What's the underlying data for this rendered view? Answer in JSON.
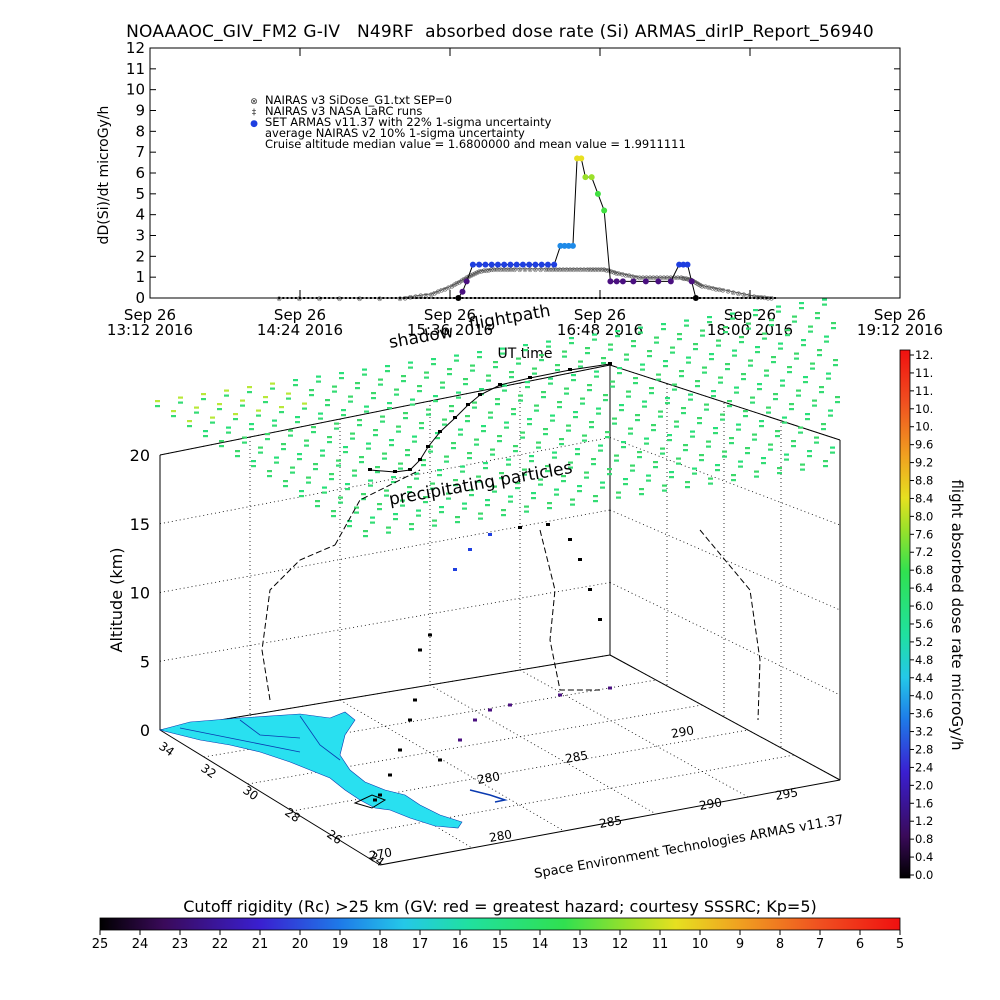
{
  "title": "NOAAAOC_GIV_FM2 G-IV   N49RF  absorbed dose rate (Si) ARMAS_dirIP_Report_56940",
  "colors": {
    "armas_blue": "#1f3fe0",
    "nairas_dots": "#555555",
    "ionosphere_green": "#3cd86a",
    "land_cyan": "#29e0f0",
    "flightpath": "#000000"
  },
  "chart_data": [
    {
      "type": "line",
      "title": "",
      "xlabel": "UT time",
      "ylabel": "dD(Si)/dt microGy/h",
      "ylim": [
        0,
        12
      ],
      "y_ticks": [
        0,
        1,
        2,
        3,
        4,
        5,
        6,
        7,
        8,
        9,
        10,
        11,
        12
      ],
      "xlim_minutes": [
        0,
        360
      ],
      "x_ticks": [
        {
          "line1": "Sep 26",
          "line2": "13:12 2016",
          "minutes": 0
        },
        {
          "line1": "Sep 26",
          "line2": "14:24 2016",
          "minutes": 72
        },
        {
          "line1": "Sep 26",
          "line2": "15:36 2016",
          "minutes": 144
        },
        {
          "line1": "Sep 26",
          "line2": "16:48 2016",
          "minutes": 216
        },
        {
          "line1": "Sep 26",
          "line2": "18:00 2016",
          "minutes": 288
        },
        {
          "line1": "Sep 26",
          "line2": "19:12 2016",
          "minutes": 360
        }
      ],
      "legend_placement": "top-left",
      "legend": [
        {
          "marker": "⊗",
          "label": "NAIRAS v3 SiDose_G1.txt SEP=0"
        },
        {
          "marker": "‡",
          "label": "NAIRAS v3 NASA LaRC runs"
        },
        {
          "marker": "●",
          "label": "SET ARMAS v11.37 with 22% 1-sigma uncertainty"
        },
        {
          "marker": "",
          "label": "average NAIRAS v2 10% 1-sigma uncertainty"
        },
        {
          "marker": "",
          "label": "Cruise altitude median value = 1.6800000 and mean value = 1.9911111"
        }
      ],
      "series": [
        {
          "name": "NAIRAS v3 SiDose_G1.txt SEP=0",
          "x": [
            62,
            120,
            135,
            145,
            152,
            158,
            165,
            175,
            190,
            200,
            210,
            218,
            225,
            235,
            245,
            255,
            260,
            265,
            275,
            290,
            300
          ],
          "y": [
            0,
            0,
            0.2,
            0.6,
            1.0,
            1.3,
            1.4,
            1.4,
            1.4,
            1.4,
            1.4,
            1.4,
            1.2,
            1.0,
            1.0,
            1.0,
            0.9,
            0.6,
            0.4,
            0.1,
            0
          ]
        },
        {
          "name": "SET ARMAS v11.37 with 22% 1-sigma uncertainty",
          "x": [
            148,
            150,
            152,
            155,
            158,
            161,
            164,
            167,
            170,
            173,
            176,
            179,
            182,
            185,
            188,
            191,
            194,
            197,
            199,
            201,
            203,
            205,
            207,
            209,
            212,
            215,
            218,
            221,
            224,
            227,
            232,
            238,
            244,
            250,
            254,
            256,
            258,
            260,
            262
          ],
          "y": [
            0,
            0.3,
            0.8,
            1.6,
            1.6,
            1.6,
            1.6,
            1.6,
            1.6,
            1.6,
            1.6,
            1.6,
            1.6,
            1.6,
            1.6,
            1.6,
            1.6,
            2.5,
            2.5,
            2.5,
            2.5,
            6.7,
            6.7,
            5.8,
            5.8,
            5.0,
            4.2,
            0.8,
            0.8,
            0.8,
            0.8,
            0.8,
            0.8,
            0.8,
            1.6,
            1.6,
            1.6,
            0.8,
            0
          ]
        }
      ]
    },
    {
      "type": "scatter",
      "title": "",
      "annotations": [
        "shadow",
        "flightpath",
        "precipitating particles"
      ],
      "zlabel": "Altitude (km)",
      "z_ticks": [
        0,
        5,
        10,
        15,
        20
      ],
      "lat_ticks": [
        34,
        32,
        30,
        28,
        26,
        24
      ],
      "lon_ticks_front": [
        270,
        280,
        285,
        290
      ],
      "lon_ticks_right": [
        280,
        285,
        290,
        295
      ],
      "credit": "Space Environment Technologies ARMAS v11.37",
      "colorbar_right": {
        "label": "flight absorbed dose rate microGy/h",
        "ticks": [
          "12.",
          "11.",
          "11.",
          "10.",
          "10.",
          "9.6",
          "9.2",
          "8.8",
          "8.4",
          "8.0",
          "7.6",
          "7.2",
          "6.8",
          "6.4",
          "6.0",
          "5.6",
          "5.2",
          "4.8",
          "4.4",
          "4.0",
          "3.6",
          "3.2",
          "2.8",
          "2.4",
          "2.0",
          "1.6",
          "1.2",
          "0.8",
          "0.4",
          "0.0"
        ]
      },
      "colorbar_bottom": {
        "label": "Cutoff rigidity (Rc) >25 km (GV: red = greatest hazard; courtesy SSSRC; Kp=5)",
        "ticks": [
          "25",
          "24",
          "23",
          "22",
          "21",
          "20",
          "19",
          "18",
          "17",
          "16",
          "15",
          "14",
          "13",
          "12",
          "11",
          "10",
          "9",
          "8",
          "7",
          "6",
          "5"
        ]
      }
    }
  ]
}
